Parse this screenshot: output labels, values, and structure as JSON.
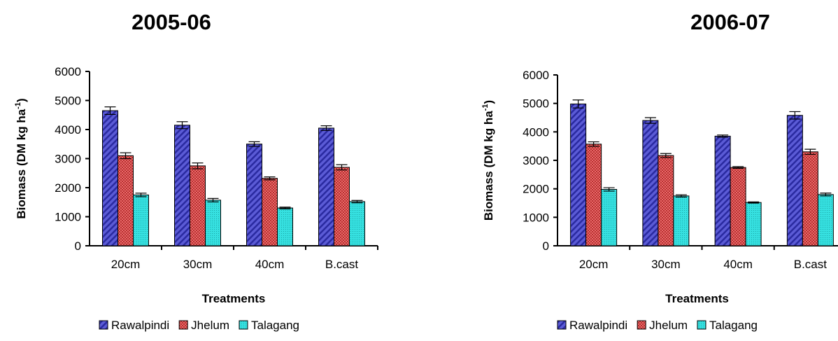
{
  "chart_data": [
    {
      "type": "bar",
      "title": "2005-06",
      "xlabel": "Treatments",
      "ylabel": "Biomass (DM kg ha",
      "ylabel_sup": "-1",
      "ylabel_end": ")",
      "ylim": [
        0,
        6000
      ],
      "yticks": [
        "0",
        "1000",
        "2000",
        "3000",
        "4000",
        "5000",
        "6000"
      ],
      "categories": [
        "20cm",
        "30cm",
        "40cm",
        "B.cast"
      ],
      "legend_position": "bottom",
      "series": [
        {
          "name": "Rawalpindi",
          "color": "#5b5bd6",
          "pattern": "diagonal-stripes",
          "values": [
            4650,
            4150,
            3500,
            4050
          ],
          "errors": [
            130,
            120,
            80,
            80
          ]
        },
        {
          "name": "Jhelum",
          "color": "#e05a5a",
          "pattern": "checker",
          "values": [
            3100,
            2750,
            2320,
            2700
          ],
          "errors": [
            100,
            100,
            50,
            90
          ]
        },
        {
          "name": "Talagang",
          "color": "#33d6d6",
          "pattern": "fine-dots",
          "values": [
            1750,
            1570,
            1300,
            1520
          ],
          "errors": [
            60,
            60,
            30,
            40
          ]
        }
      ]
    },
    {
      "type": "bar",
      "title": "2006-07",
      "xlabel": "Treatments",
      "ylabel": "Biomass (DM kg ha",
      "ylabel_sup": "-1",
      "ylabel_end": ")",
      "ylim": [
        0,
        6000
      ],
      "yticks": [
        "0",
        "1000",
        "2000",
        "3000",
        "4000",
        "5000",
        "6000"
      ],
      "categories": [
        "20cm",
        "30cm",
        "40cm",
        "B.cast"
      ],
      "legend_position": "bottom",
      "series": [
        {
          "name": "Rawalpindi",
          "color": "#5b5bd6",
          "pattern": "diagonal-stripes",
          "values": [
            4980,
            4400,
            3850,
            4580
          ],
          "errors": [
            140,
            100,
            40,
            130
          ]
        },
        {
          "name": "Jhelum",
          "color": "#e05a5a",
          "pattern": "checker",
          "values": [
            3570,
            3170,
            2750,
            3300
          ],
          "errors": [
            80,
            70,
            30,
            90
          ]
        },
        {
          "name": "Talagang",
          "color": "#33d6d6",
          "pattern": "fine-dots",
          "values": [
            1980,
            1750,
            1520,
            1800
          ],
          "errors": [
            60,
            40,
            20,
            50
          ]
        }
      ]
    }
  ]
}
